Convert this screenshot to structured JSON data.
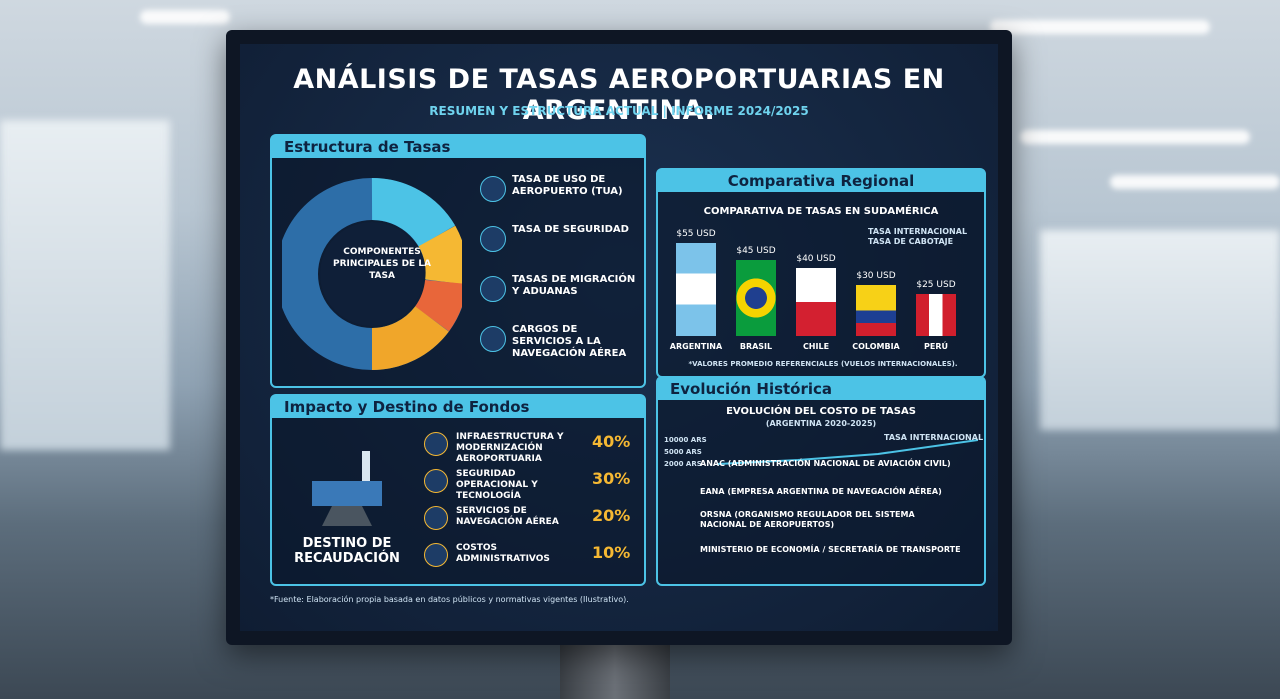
{
  "header": {
    "title": "ANÁLISIS DE TASAS AEROPORTUARIAS EN ARGENTINA.",
    "subtitle": "RESUMEN Y ESTRUCTURA ACTUAL | INFORME 2024/2025"
  },
  "structure": {
    "header": "Estructura de Tasas",
    "center": "COMPONENTES PRINCIPALES DE LA TASA",
    "items": [
      "TASA DE USO DE AEROPUERTO (TUA)",
      "TASA DE SEGURIDAD",
      "TASAS DE MIGRACIÓN Y ADUANAS",
      "CARGOS DE SERVICIOS A LA NAVEGACIÓN AÉREA"
    ]
  },
  "regional": {
    "header": "Comparativa Regional",
    "chart": {
      "type": "bar",
      "title": "COMPARATIVA DE TASAS EN SUDAMÉRICA",
      "categories": [
        "ARGENTINA",
        "BRASIL",
        "CHILE",
        "COLOMBIA",
        "PERÚ"
      ],
      "values": [
        55,
        45,
        40,
        30,
        25
      ],
      "value_labels": [
        "$55 USD",
        "$45 USD",
        "$40 USD",
        "$30 USD",
        "$25 USD"
      ],
      "legend": [
        "TASA INTERNACIONAL",
        "TASA DE CABOTAJE"
      ],
      "note": "*VALORES PROMEDIO REFERENCIALES (VUELOS INTERNACIONALES)."
    }
  },
  "impact": {
    "header": "Impacto y Destino de Fondos",
    "caption": "DESTINO DE RECAUDACIÓN",
    "items": [
      {
        "label": "INFRAESTRUCTURA Y MODERNIZACIÓN AEROPORTUARIA",
        "share": "40%"
      },
      {
        "label": "SEGURIDAD OPERACIONAL Y TECNOLOGÍA",
        "share": "30%"
      },
      {
        "label": "SERVICIOS DE NAVEGACIÓN AÉREA",
        "share": "20%"
      },
      {
        "label": "COSTOS ADMINISTRATIVOS",
        "share": "10%"
      }
    ]
  },
  "history": {
    "header": "Evolución Histórica",
    "title": "EVOLUCIÓN DEL COSTO DE TASAS",
    "subtitle": "(ARGENTINA 2020-2025)",
    "axis": [
      "10000 ARS",
      "5000 ARS",
      "2000 ARS"
    ],
    "line_label": "TASA INTERNACIONAL",
    "entities": [
      "ANAC (ADMINISTRACIÓN NACIONAL DE AVIACIÓN CIVIL)",
      "EANA (EMPRESA ARGENTINA DE NAVEGACIÓN AÉREA)",
      "ORSNA (ORGANISMO REGULADOR DEL SISTEMA NACIONAL DE AEROPUERTOS)",
      "MINISTERIO DE ECONOMÍA / SECRETARÍA DE TRANSPORTE"
    ]
  },
  "footer": "*Fuente: Elaboración propia basada en datos públicos y normativas vigentes (Ilustrativo)."
}
